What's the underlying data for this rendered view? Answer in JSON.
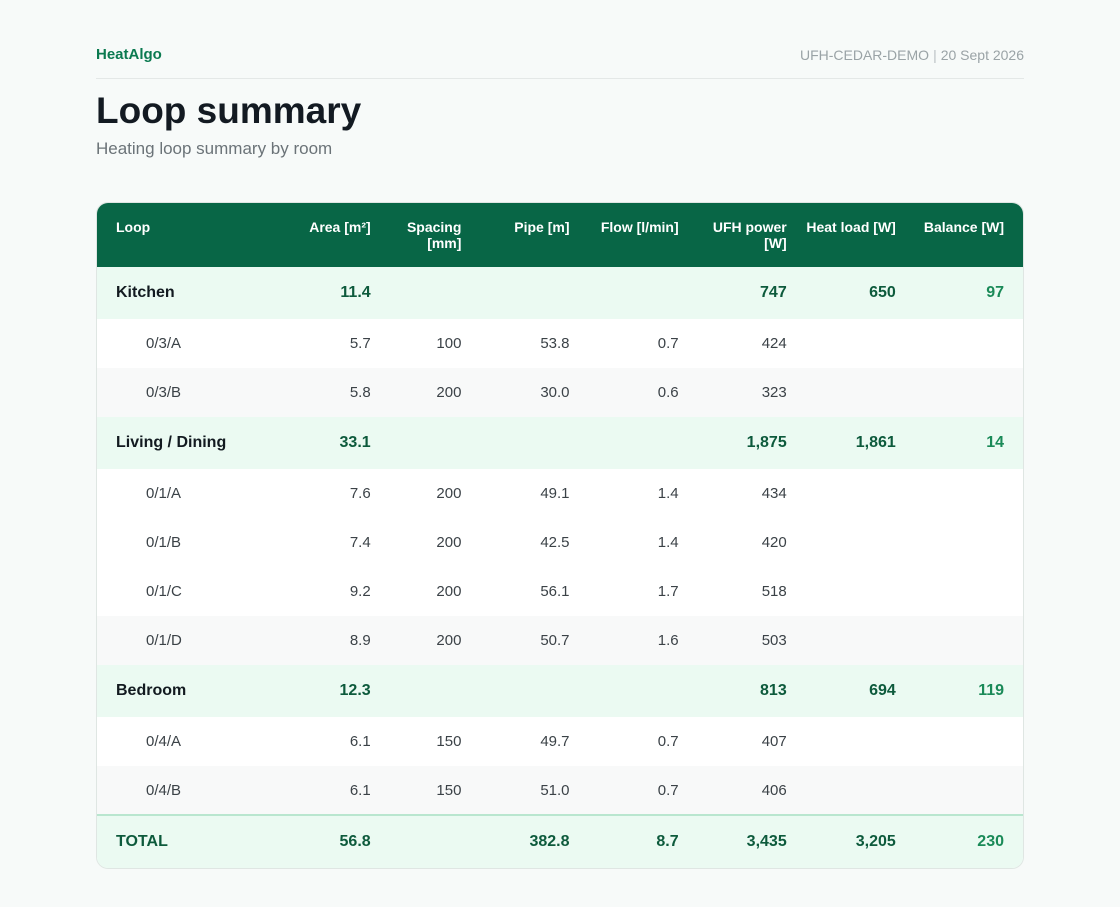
{
  "header": {
    "brand": "HeatAlgo",
    "project": "UFH-CEDAR-DEMO",
    "separator": "|",
    "date": "20 Sept 2026"
  },
  "page": {
    "title": "Loop summary",
    "subtitle": "Heating loop summary by room"
  },
  "table": {
    "columns": [
      "Loop",
      "Area [m²]",
      "Spacing [mm]",
      "Pipe [m]",
      "Flow [l/min]",
      "UFH power [W]",
      "Heat load [W]",
      "Balance [W]"
    ],
    "groups": [
      {
        "room": "Kitchen",
        "area": "11.4",
        "ufh_power": "747",
        "heat_load": "650",
        "balance": "97",
        "loops": [
          {
            "id": "0/3/A",
            "area": "5.7",
            "spacing": "100",
            "pipe": "53.8",
            "flow": "0.7",
            "ufh_power": "424"
          },
          {
            "id": "0/3/B",
            "area": "5.8",
            "spacing": "200",
            "pipe": "30.0",
            "flow": "0.6",
            "ufh_power": "323"
          }
        ]
      },
      {
        "room": "Living / Dining",
        "area": "33.1",
        "ufh_power": "1,875",
        "heat_load": "1,861",
        "balance": "14",
        "loops": [
          {
            "id": "0/1/A",
            "area": "7.6",
            "spacing": "200",
            "pipe": "49.1",
            "flow": "1.4",
            "ufh_power": "434"
          },
          {
            "id": "0/1/B",
            "area": "7.4",
            "spacing": "200",
            "pipe": "42.5",
            "flow": "1.4",
            "ufh_power": "420"
          },
          {
            "id": "0/1/C",
            "area": "9.2",
            "spacing": "200",
            "pipe": "56.1",
            "flow": "1.7",
            "ufh_power": "518"
          },
          {
            "id": "0/1/D",
            "area": "8.9",
            "spacing": "200",
            "pipe": "50.7",
            "flow": "1.6",
            "ufh_power": "503"
          }
        ]
      },
      {
        "room": "Bedroom",
        "area": "12.3",
        "ufh_power": "813",
        "heat_load": "694",
        "balance": "119",
        "loops": [
          {
            "id": "0/4/A",
            "area": "6.1",
            "spacing": "150",
            "pipe": "49.7",
            "flow": "0.7",
            "ufh_power": "407"
          },
          {
            "id": "0/4/B",
            "area": "6.1",
            "spacing": "150",
            "pipe": "51.0",
            "flow": "0.7",
            "ufh_power": "406"
          }
        ]
      }
    ],
    "total": {
      "label": "TOTAL",
      "area": "56.8",
      "spacing": "",
      "pipe": "382.8",
      "flow": "8.7",
      "ufh_power": "3,435",
      "heat_load": "3,205",
      "balance": "230"
    }
  },
  "colors": {
    "brand": "#0b7a50",
    "header_bg": "#086646",
    "group_bg": "#ebfaf2",
    "balance": "#1a8a58"
  }
}
